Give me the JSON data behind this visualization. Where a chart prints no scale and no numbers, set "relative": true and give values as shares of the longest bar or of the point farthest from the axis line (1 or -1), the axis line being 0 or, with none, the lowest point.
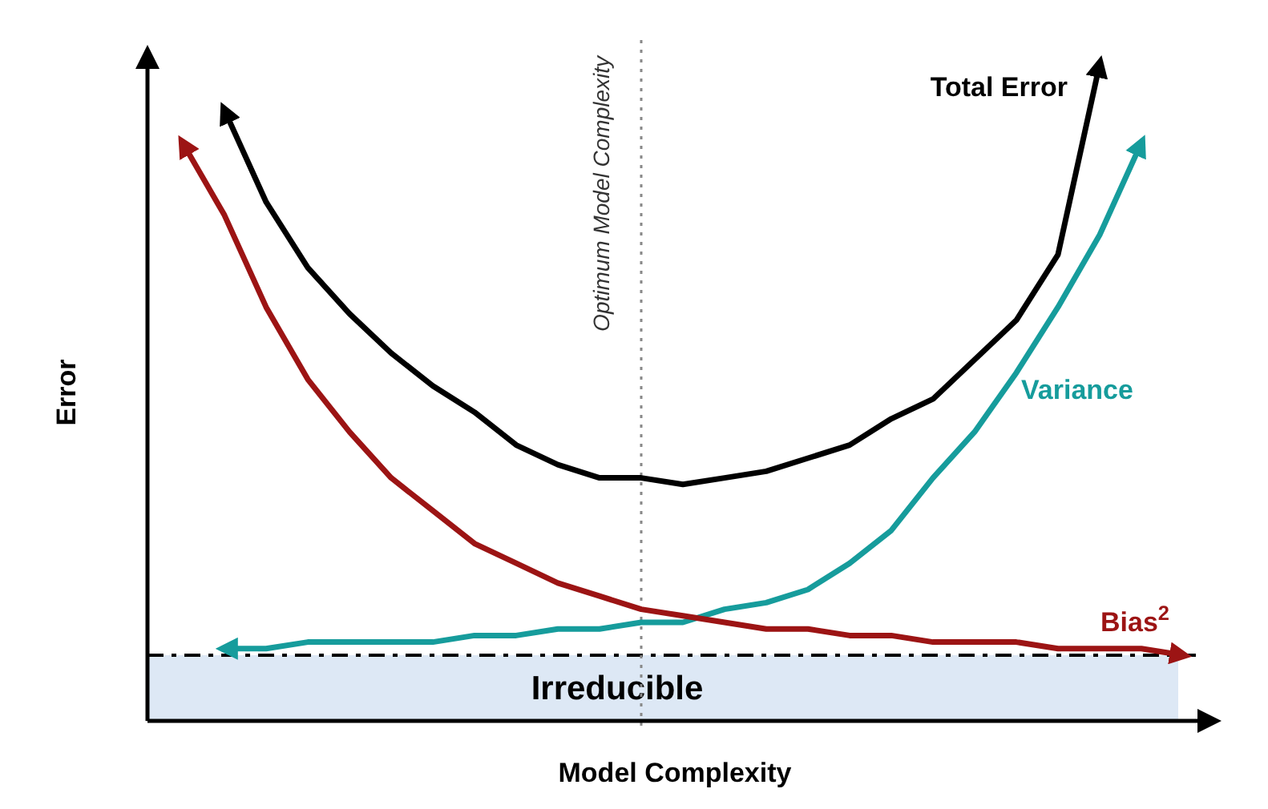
{
  "chart_data": {
    "type": "line",
    "relative": true,
    "xlabel": "Model Complexity",
    "ylabel": "Error",
    "legend": false,
    "marker": "none",
    "line_style": "solid",
    "categories": [
      null,
      null,
      null,
      null,
      null,
      null,
      null,
      null,
      null,
      null,
      null,
      null,
      null,
      null,
      null,
      null,
      null,
      null,
      null,
      null,
      null,
      null,
      null,
      null,
      null
    ],
    "series": [
      {
        "name": "Total Error",
        "color": "#000000",
        "values": [
          null,
          0.93,
          0.79,
          0.69,
          0.62,
          0.56,
          0.51,
          0.47,
          0.42,
          0.39,
          0.37,
          0.37,
          0.36,
          0.37,
          0.38,
          0.4,
          0.42,
          0.46,
          0.49,
          0.55,
          0.61,
          0.71,
          1.0,
          null,
          null
        ]
      },
      {
        "name": "Variance",
        "color": "#169c9c",
        "values": [
          null,
          0.11,
          0.11,
          0.12,
          0.12,
          0.12,
          0.12,
          0.13,
          0.13,
          0.14,
          0.14,
          0.15,
          0.15,
          0.17,
          0.18,
          0.2,
          0.24,
          0.29,
          0.37,
          0.44,
          0.53,
          0.63,
          0.74,
          0.88,
          null
        ]
      },
      {
        "name": "Bias$^{2}$",
        "color": "#9c1414",
        "values": [
          0.88,
          0.77,
          0.63,
          0.52,
          0.44,
          0.37,
          0.32,
          0.27,
          0.24,
          0.21,
          0.19,
          0.17,
          0.16,
          0.15,
          0.14,
          0.14,
          0.13,
          0.13,
          0.12,
          0.12,
          0.12,
          0.11,
          0.11,
          0.11,
          0.1
        ]
      }
    ],
    "bands": [
      {
        "axis": "y",
        "from": 0,
        "to": 0.1,
        "label": "Irreducible",
        "color": "#dde8f5"
      }
    ],
    "ref_lines": [
      {
        "axis": "y",
        "value": 0.1,
        "color": "#000000",
        "line_style": "dashed"
      }
    ],
    "annotations": [
      "Optimum Model Complexity"
    ]
  }
}
